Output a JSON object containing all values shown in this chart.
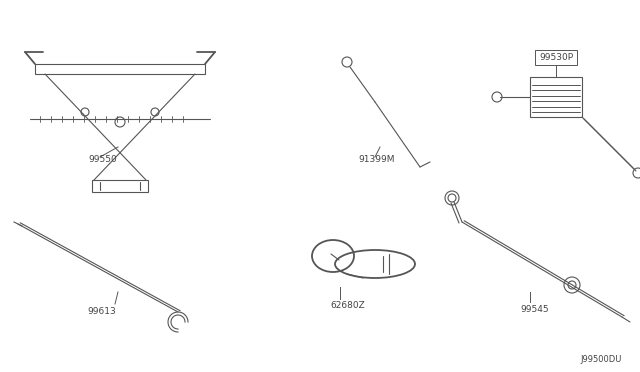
{
  "bg_color": "#ffffff",
  "line_color": "#555555",
  "text_color": "#444444",
  "diagram_id": "J99500DU",
  "parts": [
    {
      "id": "99613",
      "type": "crowbar"
    },
    {
      "id": "62680Z",
      "type": "ring_wrench"
    },
    {
      "id": "99545",
      "type": "lug_wrench"
    },
    {
      "id": "99550",
      "type": "scissor_jack"
    },
    {
      "id": "91399M",
      "type": "handle"
    },
    {
      "id": "99530P",
      "type": "joint"
    }
  ],
  "lw_part": 1.3,
  "lw_thin": 0.8,
  "lw_leader": 0.7,
  "fontsize": 6.5
}
